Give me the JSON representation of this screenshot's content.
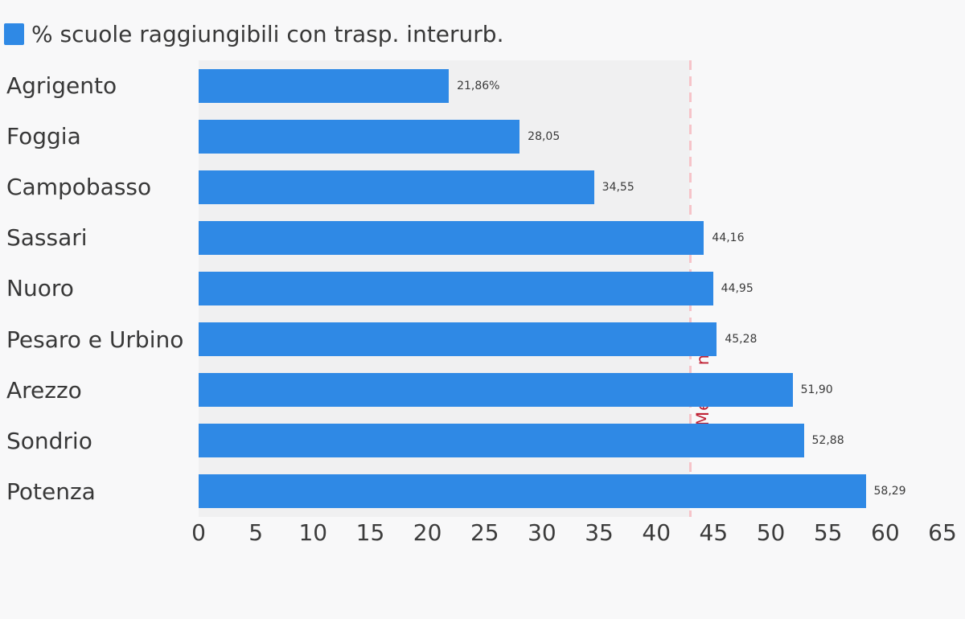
{
  "page": {
    "background_color": "#f8f8f9",
    "plot_band_color": "#f0f0f1"
  },
  "legend": {
    "label": "% scuole raggiungibili con trasp. interurb.",
    "swatch_color": "#2f89e5"
  },
  "chart_data": {
    "type": "bar",
    "orientation": "horizontal",
    "title": "",
    "series_name": "% scuole raggiungibili con trasp. interurb.",
    "categories": [
      "Agrigento",
      "Foggia",
      "Campobasso",
      "Sassari",
      "Nuoro",
      "Pesaro e Urbino",
      "Arezzo",
      "Sondrio",
      "Potenza"
    ],
    "values": [
      21.86,
      28.05,
      34.55,
      44.16,
      44.95,
      45.28,
      51.9,
      52.88,
      58.29
    ],
    "value_labels": [
      "21,86%",
      "28,05",
      "34,55",
      "44,16",
      "44,95",
      "45,28",
      "51,90",
      "52,88",
      "58,29"
    ],
    "bar_color": "#2f89e5",
    "x_ticks": [
      "0",
      "5",
      "10",
      "15",
      "20",
      "25",
      "30",
      "35",
      "40",
      "45",
      "50",
      "55",
      "60",
      "65"
    ],
    "xlim": [
      0,
      65
    ],
    "grid": false,
    "legend_position": "top-left",
    "reference_line": {
      "label": "Media naz.",
      "value": 42.9,
      "line_color": "#f6c4c9",
      "label_color": "#bf2134",
      "style": "dashed"
    },
    "shaded_region": {
      "from": 0,
      "to": 42.9,
      "color": "#f0f0f1"
    }
  }
}
